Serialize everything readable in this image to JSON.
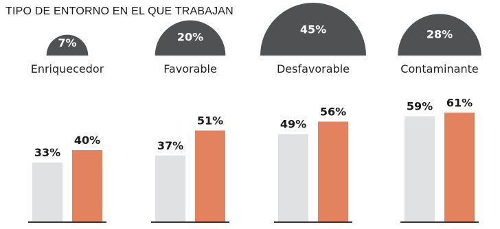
{
  "chart_data": {
    "type": "bar",
    "title": "TIPO DE ENTORNO EN EL QUE TRABAJAN",
    "categories": [
      "Enriquecedor",
      "Favorable",
      "Desfavorable",
      "Contaminante"
    ],
    "environment_share": [
      "7%",
      "20%",
      "45%",
      "28%"
    ],
    "environment_share_values": [
      7,
      20,
      45,
      28
    ],
    "series": [
      {
        "values": [
          33,
          37,
          49,
          59
        ],
        "labels": [
          "33%",
          "37%",
          "49%",
          "59%"
        ],
        "color": "#dfe1e3"
      },
      {
        "values": [
          40,
          51,
          56,
          61
        ],
        "labels": [
          "40%",
          "51%",
          "56%",
          "61%"
        ],
        "color": "#e2825f"
      }
    ],
    "ylim": [
      0,
      70
    ],
    "grid": false,
    "legend": "none",
    "dome_color": "#4f5153",
    "baseline_color": "#333333"
  }
}
